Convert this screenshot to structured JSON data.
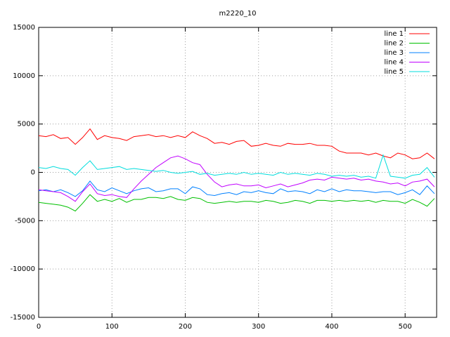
{
  "chart_data": {
    "type": "line",
    "title": "m2220_10",
    "x": [
      0,
      10,
      20,
      30,
      40,
      50,
      60,
      70,
      80,
      90,
      100,
      110,
      120,
      130,
      140,
      150,
      160,
      170,
      180,
      190,
      200,
      210,
      220,
      230,
      240,
      250,
      260,
      270,
      280,
      290,
      300,
      310,
      320,
      330,
      340,
      350,
      360,
      370,
      380,
      390,
      400,
      410,
      420,
      430,
      440,
      450,
      460,
      470,
      480,
      490,
      500,
      510,
      520,
      530,
      540
    ],
    "xlim": [
      0,
      543
    ],
    "xticks": [
      0,
      100,
      200,
      300,
      400,
      500
    ],
    "ylim": [
      -15000,
      15000
    ],
    "yticks": [
      -15000,
      -10000,
      -5000,
      0,
      5000,
      10000,
      15000
    ],
    "grid": true,
    "legend": "top-right",
    "series": [
      {
        "name": "line 1",
        "color": "#ff0000",
        "values": [
          3800,
          3700,
          3900,
          3500,
          3600,
          2900,
          3600,
          4500,
          3400,
          3800,
          3600,
          3500,
          3300,
          3700,
          3800,
          3900,
          3700,
          3800,
          3600,
          3800,
          3600,
          4200,
          3800,
          3500,
          3000,
          3100,
          2900,
          3200,
          3300,
          2700,
          2800,
          3000,
          2800,
          2700,
          3000,
          2900,
          2900,
          3000,
          2800,
          2800,
          2700,
          2200,
          2000,
          2000,
          2000,
          1800,
          2000,
          1700,
          1500,
          2000,
          1800,
          1400,
          1500,
          2000,
          1400
        ]
      },
      {
        "name": "line 2",
        "color": "#00c000",
        "values": [
          -3100,
          -3200,
          -3300,
          -3400,
          -3600,
          -4000,
          -3200,
          -2300,
          -3000,
          -2800,
          -3000,
          -2700,
          -3100,
          -2800,
          -2800,
          -2600,
          -2600,
          -2700,
          -2500,
          -2800,
          -2900,
          -2600,
          -2700,
          -3100,
          -3200,
          -3100,
          -3000,
          -3100,
          -3000,
          -3000,
          -3100,
          -2900,
          -3000,
          -3200,
          -3100,
          -2900,
          -3000,
          -3200,
          -2900,
          -2900,
          -3000,
          -2900,
          -3000,
          -2900,
          -3000,
          -2900,
          -3100,
          -2900,
          -3000,
          -3000,
          -3200,
          -2800,
          -3100,
          -3500,
          -2700
        ]
      },
      {
        "name": "line 3",
        "color": "#0080ff",
        "values": [
          -1900,
          -1800,
          -2000,
          -1800,
          -2100,
          -2500,
          -1900,
          -900,
          -1800,
          -2000,
          -1600,
          -1900,
          -2200,
          -1900,
          -1700,
          -1600,
          -2000,
          -1900,
          -1700,
          -1700,
          -2200,
          -1500,
          -1700,
          -2300,
          -2400,
          -2200,
          -2100,
          -2300,
          -2000,
          -2100,
          -1900,
          -2100,
          -2200,
          -1700,
          -2000,
          -1900,
          -2000,
          -2200,
          -1800,
          -2000,
          -1700,
          -2000,
          -1800,
          -1900,
          -1900,
          -2000,
          -2100,
          -2000,
          -2000,
          -2300,
          -2100,
          -1800,
          -2300,
          -1400,
          -2200
        ]
      },
      {
        "name": "line 4",
        "color": "#c000ff",
        "values": [
          -1800,
          -1900,
          -2000,
          -2100,
          -2500,
          -3000,
          -2000,
          -1200,
          -2200,
          -2400,
          -2300,
          -2500,
          -2600,
          -1700,
          -900,
          -200,
          500,
          1000,
          1500,
          1700,
          1400,
          1000,
          800,
          -200,
          -1000,
          -1500,
          -1300,
          -1200,
          -1400,
          -1400,
          -1300,
          -1600,
          -1400,
          -1200,
          -1500,
          -1300,
          -1100,
          -800,
          -700,
          -800,
          -500,
          -600,
          -700,
          -600,
          -800,
          -700,
          -900,
          -1000,
          -1200,
          -1100,
          -1400,
          -1000,
          -900,
          -700,
          -1500
        ]
      },
      {
        "name": "line 5",
        "color": "#00dddd",
        "values": [
          500,
          400,
          600,
          400,
          300,
          -300,
          500,
          1200,
          300,
          400,
          500,
          600,
          300,
          400,
          300,
          200,
          100,
          200,
          0,
          -100,
          0,
          100,
          -200,
          -100,
          -300,
          -200,
          -100,
          -200,
          0,
          -200,
          -100,
          -200,
          -300,
          0,
          -200,
          -100,
          -200,
          -300,
          -100,
          -200,
          -400,
          -300,
          -400,
          -300,
          -500,
          -400,
          -600,
          1800,
          -400,
          -500,
          -600,
          -300,
          -200,
          500,
          -500
        ]
      }
    ]
  }
}
